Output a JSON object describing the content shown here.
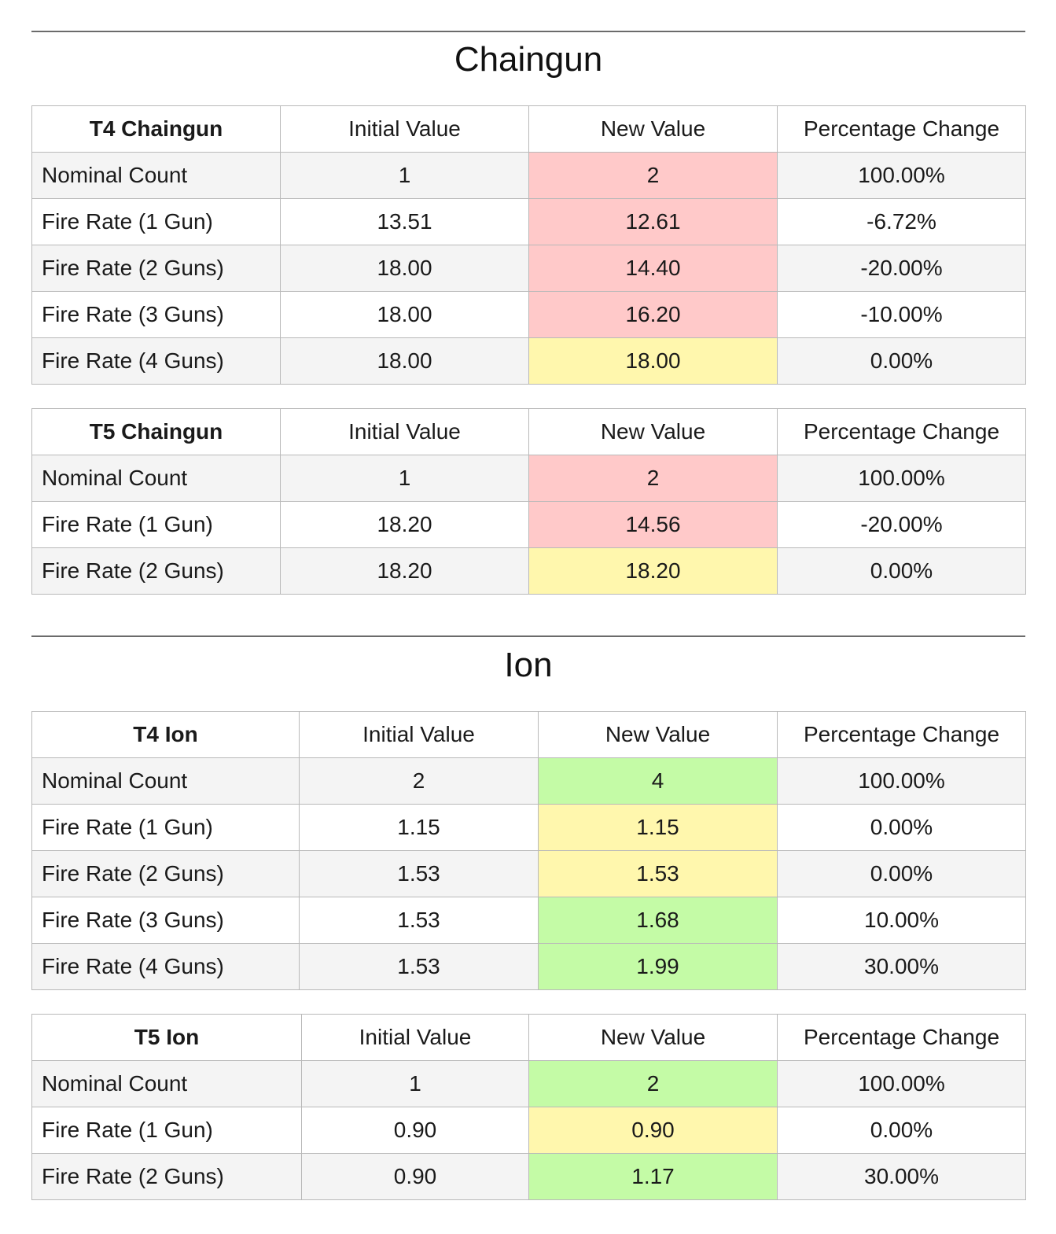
{
  "sections": [
    {
      "title": "Chaingun",
      "tables": [
        {
          "header": [
            "T4 Chaingun",
            "Initial Value",
            "New Value",
            "Percentage Change"
          ],
          "rows": [
            {
              "label": "Nominal Count",
              "initial": "1",
              "new": "2",
              "change": "100.00%",
              "highlight": "red"
            },
            {
              "label": "Fire Rate (1 Gun)",
              "initial": "13.51",
              "new": "12.61",
              "change": "-6.72%",
              "highlight": "red"
            },
            {
              "label": "Fire Rate (2 Guns)",
              "initial": "18.00",
              "new": "14.40",
              "change": "-20.00%",
              "highlight": "red"
            },
            {
              "label": "Fire Rate (3 Guns)",
              "initial": "18.00",
              "new": "16.20",
              "change": "-10.00%",
              "highlight": "red"
            },
            {
              "label": "Fire Rate (4 Guns)",
              "initial": "18.00",
              "new": "18.00",
              "change": "0.00%",
              "highlight": "yellow"
            }
          ]
        },
        {
          "header": [
            "T5 Chaingun",
            "Initial Value",
            "New Value",
            "Percentage Change"
          ],
          "rows": [
            {
              "label": "Nominal Count",
              "initial": "1",
              "new": "2",
              "change": "100.00%",
              "highlight": "red"
            },
            {
              "label": "Fire Rate (1 Gun)",
              "initial": "18.20",
              "new": "14.56",
              "change": "-20.00%",
              "highlight": "red"
            },
            {
              "label": "Fire Rate (2 Guns)",
              "initial": "18.20",
              "new": "18.20",
              "change": "0.00%",
              "highlight": "yellow"
            }
          ]
        }
      ]
    },
    {
      "title": "Ion",
      "tables": [
        {
          "header": [
            "T4 Ion",
            "Initial Value",
            "New Value",
            "Percentage Change"
          ],
          "rows": [
            {
              "label": "Nominal Count",
              "initial": "2",
              "new": "4",
              "change": "100.00%",
              "highlight": "green"
            },
            {
              "label": "Fire Rate (1 Gun)",
              "initial": "1.15",
              "new": "1.15",
              "change": "0.00%",
              "highlight": "yellow"
            },
            {
              "label": "Fire Rate (2 Guns)",
              "initial": "1.53",
              "new": "1.53",
              "change": "0.00%",
              "highlight": "yellow"
            },
            {
              "label": "Fire Rate (3 Guns)",
              "initial": "1.53",
              "new": "1.68",
              "change": "10.00%",
              "highlight": "green"
            },
            {
              "label": "Fire Rate (4 Guns)",
              "initial": "1.53",
              "new": "1.99",
              "change": "30.00%",
              "highlight": "green"
            }
          ]
        },
        {
          "header": [
            "T5 Ion",
            "Initial Value",
            "New Value",
            "Percentage Change"
          ],
          "rows": [
            {
              "label": "Nominal Count",
              "initial": "1",
              "new": "2",
              "change": "100.00%",
              "highlight": "green"
            },
            {
              "label": "Fire Rate (1 Gun)",
              "initial": "0.90",
              "new": "0.90",
              "change": "0.00%",
              "highlight": "yellow"
            },
            {
              "label": "Fire Rate (2 Guns)",
              "initial": "0.90",
              "new": "1.17",
              "change": "30.00%",
              "highlight": "green"
            }
          ]
        }
      ]
    }
  ],
  "colors": {
    "red": "#ffc9c9",
    "yellow": "#fff7ad",
    "green": "#c4fba6",
    "shade": "#f4f4f4"
  }
}
